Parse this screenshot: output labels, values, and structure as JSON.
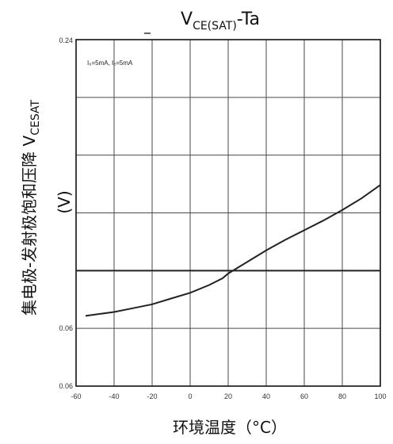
{
  "chart_data": {
    "type": "line",
    "title": {
      "main": "V",
      "sub": "CE(SAT)",
      "tail": "-Ta"
    },
    "ylabel_main": "集电极-发射极饱和压降 V",
    "ylabel_sub": "CESAT",
    "ylabel_unit": "(V)",
    "xlabel": "环境温度（°C）",
    "condition": "I₆=5mA, Iₑ=5mA",
    "xlim": [
      -60,
      100
    ],
    "ylim": [
      0.06,
      0.24
    ],
    "x_ticks": [
      "-60",
      "-40",
      "-20",
      "0",
      "20",
      "40",
      "60",
      "80",
      "100"
    ],
    "y_tick_labels": [
      "0.24",
      "0.06",
      "0.06"
    ],
    "reference_line_y": 0.12,
    "series": [
      {
        "x": [
          -55,
          -40,
          -30,
          -20,
          -10,
          0,
          10,
          17,
          20,
          30,
          40,
          50,
          60,
          70,
          80,
          90,
          100
        ],
        "y": [
          0.0965,
          0.0985,
          0.1005,
          0.1025,
          0.1055,
          0.1085,
          0.1125,
          0.116,
          0.1185,
          0.1245,
          0.1305,
          0.136,
          0.141,
          0.146,
          0.1515,
          0.1575,
          0.1645
        ]
      }
    ],
    "grid": true
  }
}
